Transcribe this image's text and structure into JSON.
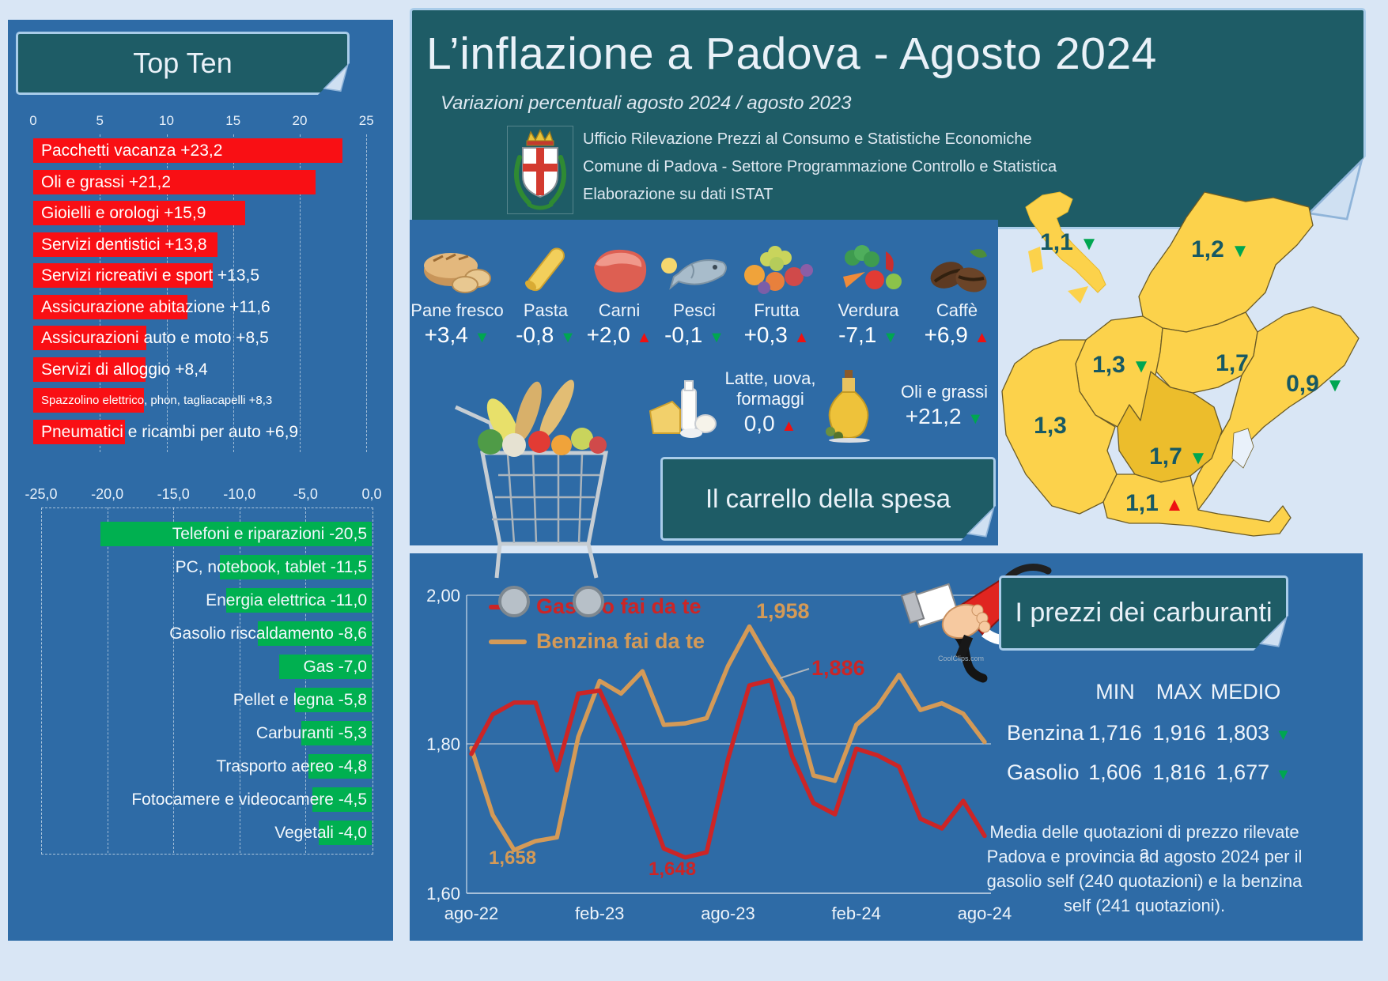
{
  "header": {
    "title": "L’inflazione a Padova - Agosto 2024",
    "subtitle": "Variazioni percentuali agosto 2024 / agosto 2023",
    "org_lines": [
      "Ufficio Rilevazione Prezzi al Consumo e Statistiche Economiche",
      "Comune di Padova -  Settore Programmazione Controllo e Statistica",
      "Elaborazione su dati ISTAT"
    ]
  },
  "top_ten": {
    "title": "Top Ten",
    "axis_increases": [
      "0",
      "5",
      "10",
      "15",
      "20",
      "25"
    ],
    "axis_decreases": [
      "-25,0",
      "-20,0",
      "-15,0",
      "-10,0",
      "-5,0",
      "0,0"
    ]
  },
  "carrello": {
    "title": "Il carrello della spesa",
    "items": [
      {
        "name": "Pane fresco",
        "value": "+3,4",
        "dir": "down",
        "icon": "bread-icon"
      },
      {
        "name": "Pasta",
        "value": "-0,8",
        "dir": "down",
        "icon": "pasta-icon"
      },
      {
        "name": "Carni",
        "value": "+2,0",
        "dir": "up",
        "icon": "meat-icon"
      },
      {
        "name": "Pesci",
        "value": "-0,1",
        "dir": "down",
        "icon": "fish-icon"
      },
      {
        "name": "Frutta",
        "value": "+0,3",
        "dir": "up",
        "icon": "fruit-icon"
      },
      {
        "name": "Verdura",
        "value": "-7,1",
        "dir": "down",
        "icon": "vegetables-icon"
      },
      {
        "name": "Caffè",
        "value": "+6,9",
        "dir": "up",
        "icon": "coffee-icon"
      }
    ],
    "dairy": {
      "name_line1": "Latte, uova,",
      "name_line2": "formaggi",
      "value": "0,0",
      "dir": "up",
      "icon": "dairy-icon"
    },
    "oils": {
      "name": "Oli e grassi",
      "value": "+21,2",
      "dir": "down",
      "icon": "oil-icon"
    }
  },
  "map": {
    "italia": {
      "name": "Italia",
      "value": "1,1",
      "dir": "down"
    },
    "provinces": [
      {
        "name": "Belluno",
        "value": "1,2",
        "dir": "down"
      },
      {
        "name": "Vicenza",
        "value": "1,3",
        "dir": "down"
      },
      {
        "name": "Treviso",
        "value": "1,7",
        "dir": "none"
      },
      {
        "name": "Venezia",
        "value": "0,9",
        "dir": "down"
      },
      {
        "name": "Verona",
        "value": "1,3",
        "dir": "none"
      },
      {
        "name": "Padova",
        "value": "1,7",
        "dir": "down"
      },
      {
        "name": "Rovigo",
        "value": "1,1",
        "dir": "up"
      }
    ]
  },
  "fuel": {
    "title": "I prezzi dei carburanti",
    "columns": [
      "MIN",
      "MAX",
      "MEDIO"
    ],
    "rows": [
      {
        "label": "Benzina",
        "min": "1,716",
        "max": "1,916",
        "medio": "1,803",
        "dir": "down"
      },
      {
        "label": "Gasolio",
        "min": "1,606",
        "max": "1,816",
        "medio": "1,677",
        "dir": "down"
      }
    ],
    "note_lines": [
      "Media delle quotazioni di prezzo rilevate a",
      "Padova e provincia ad agosto 2024 per il",
      "gasolio self (240 quotazioni) e la benzina",
      "self (241 quotazioni)."
    ],
    "watermark": "CoolClips.com"
  },
  "colors": {
    "panel_blue": "#2e6ba6",
    "teal": "#1e5c66",
    "page_bg": "#d9e6f5",
    "border_light": "#a9cce9",
    "bar_red": "#f90f14",
    "bar_green": "#00b050",
    "map_yellow": "#fcd24b",
    "map_padova": "#ecbd2c",
    "map_text": "#175964",
    "gasolio_line": "#cc2526",
    "benzina_line": "#d49a57"
  },
  "chart_data": [
    {
      "type": "bar",
      "title": "Top Ten - aumenti",
      "orientation": "horizontal",
      "xlim": [
        0,
        25
      ],
      "categories": [
        "Pacchetti vacanza",
        "Oli e grassi",
        "Gioielli e orologi",
        "Servizi dentistici",
        "Servizi ricreativi e sport",
        "Assicurazione abitazione",
        "Assicurazioni auto e moto",
        "Servizi di alloggio",
        "Spazzolino elettrico, phon, tagliacapelli",
        "Pneumatici e ricambi per auto"
      ],
      "values": [
        23.2,
        21.2,
        15.9,
        13.8,
        13.5,
        11.6,
        8.5,
        8.4,
        8.3,
        6.9
      ],
      "labels": [
        "Pacchetti vacanza +23,2",
        "Oli e grassi +21,2",
        "Gioielli e orologi +15,9",
        "Servizi dentistici +13,8",
        "Servizi ricreativi e sport +13,5",
        "Assicurazione abitazione +11,6",
        "Assicurazioni auto e moto +8,5",
        "Servizi di alloggio +8,4",
        "Spazzolino elettrico, phon, tagliacapelli +8,3",
        "Pneumatici e ricambi per auto +6,9"
      ]
    },
    {
      "type": "bar",
      "title": "Top Ten - diminuzioni",
      "orientation": "horizontal",
      "xlim": [
        -25,
        0
      ],
      "categories": [
        "Telefoni e riparazioni",
        "PC, notebook, tablet",
        "Energia elettrica",
        "Gasolio riscaldamento",
        "Gas",
        "Pellet e legna",
        "Carburanti",
        "Trasporto aereo",
        "Fotocamere e videocamere",
        "Vegetali"
      ],
      "values": [
        -20.5,
        -11.5,
        -11.0,
        -8.6,
        -7.0,
        -5.8,
        -5.3,
        -4.8,
        -4.5,
        -4.0
      ],
      "labels": [
        "Telefoni e riparazioni -20,5",
        "PC, notebook, tablet -11,5",
        "Energia elettrica -11,0",
        "Gasolio riscaldamento -8,6",
        "Gas -7,0",
        "Pellet e legna -5,8",
        "Carburanti -5,3",
        "Trasporto aereo -4,8",
        "Fotocamere e videocamere -4,5",
        "Vegetali -4,0"
      ]
    },
    {
      "type": "line",
      "title": "I prezzi dei carburanti",
      "ylim": [
        1.6,
        2.0
      ],
      "ytick_labels": [
        "2,00",
        "1,80",
        "1,60"
      ],
      "xtick_labels": [
        "ago-22",
        "feb-23",
        "ago-23",
        "feb-24",
        "ago-24"
      ],
      "x": [
        "ago-22",
        "set-22",
        "ott-22",
        "nov-22",
        "dic-22",
        "gen-23",
        "feb-23",
        "mar-23",
        "apr-23",
        "mag-23",
        "giu-23",
        "lug-23",
        "ago-23",
        "set-23",
        "ott-23",
        "nov-23",
        "dic-23",
        "gen-24",
        "feb-24",
        "mar-24",
        "apr-24",
        "mag-24",
        "giu-24",
        "lug-24",
        "ago-24"
      ],
      "series": [
        {
          "name": "Gasolio fai da te",
          "color": "#cc2526",
          "values": [
            1.787,
            1.84,
            1.856,
            1.856,
            1.765,
            1.868,
            1.872,
            1.81,
            1.738,
            1.66,
            1.648,
            1.655,
            1.78,
            1.879,
            1.886,
            1.784,
            1.721,
            1.706,
            1.794,
            1.785,
            1.77,
            1.7,
            1.687,
            1.724,
            1.677
          ]
        },
        {
          "name": "Benzina fai da te",
          "color": "#d49a57",
          "values": [
            1.795,
            1.705,
            1.658,
            1.67,
            1.675,
            1.81,
            1.885,
            1.868,
            1.898,
            1.826,
            1.828,
            1.835,
            1.905,
            1.958,
            1.908,
            1.862,
            1.758,
            1.751,
            1.826,
            1.851,
            1.893,
            1.846,
            1.855,
            1.841,
            1.803
          ]
        }
      ],
      "annotations": [
        {
          "text": "1,958",
          "series": "Benzina fai da te"
        },
        {
          "text": "1,886",
          "series": "Gasolio fai da te"
        },
        {
          "text": "1,658",
          "series": "Benzina fai da te"
        },
        {
          "text": "1,648",
          "series": "Gasolio fai da te"
        }
      ]
    }
  ]
}
